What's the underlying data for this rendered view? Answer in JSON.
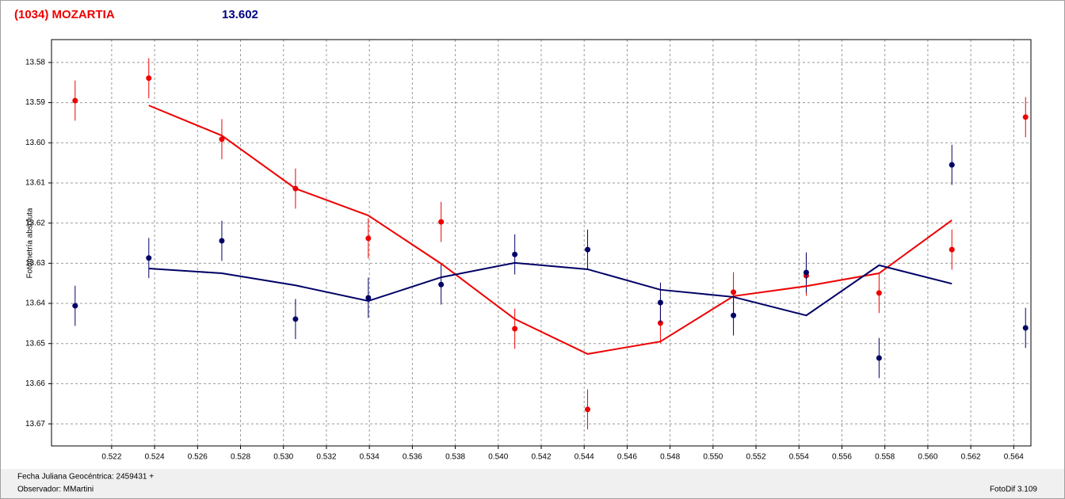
{
  "chart_data": {
    "type": "scatter",
    "title": "(1034) MOZARTIA",
    "subtitle": "13.602",
    "ylabel": "Fotometría absoluta",
    "x": [
      0.5203,
      0.52373,
      0.52713,
      0.53056,
      0.53395,
      0.53734,
      0.54077,
      0.54416,
      0.54755,
      0.55095,
      0.55434,
      0.55773,
      0.56112,
      0.56455
    ],
    "series": [
      {
        "color": "#ee0000",
        "style": "points",
        "values": [
          13.5895,
          13.5839,
          13.5991,
          13.6114,
          13.6238,
          13.6197,
          13.6463,
          13.6664,
          13.6449,
          13.6372,
          13.6331,
          13.6374,
          13.6266,
          13.5936
        ],
        "errors": [
          0.005,
          0.005,
          0.005,
          0.005,
          0.005,
          0.005,
          0.005,
          0.005,
          0.005,
          0.005,
          0.005,
          0.005,
          0.005,
          0.005
        ]
      },
      {
        "color": "#000066",
        "style": "points",
        "values": [
          13.6406,
          13.6287,
          13.6244,
          13.6439,
          13.6386,
          13.6353,
          13.6278,
          13.6266,
          13.6398,
          13.643,
          13.6323,
          13.6536,
          13.6055,
          13.6461
        ],
        "errors": [
          0.005,
          0.005,
          0.005,
          0.005,
          0.005,
          0.005,
          0.005,
          0.005,
          0.005,
          0.005,
          0.005,
          0.005,
          0.005,
          0.005
        ]
      },
      {
        "color": "#ee0000",
        "style": "line",
        "values": [
          null,
          13.5907,
          13.5982,
          13.6114,
          13.6181,
          13.6301,
          13.6439,
          13.6526,
          13.6495,
          13.6382,
          13.6357,
          13.6325,
          13.6193,
          null
        ]
      },
      {
        "color": "#000066",
        "style": "line",
        "values": [
          null,
          13.6313,
          13.6325,
          13.6355,
          13.6394,
          13.6335,
          13.6299,
          13.6315,
          13.6366,
          13.6384,
          13.643,
          13.6305,
          13.6351,
          null
        ]
      }
    ],
    "xlim": [
      0.5192,
      0.5648
    ],
    "xticks": [
      0.522,
      0.524,
      0.526,
      0.528,
      {
        "value": 0.53,
        "label": "0.530"
      },
      0.532,
      0.534,
      0.536,
      0.538,
      {
        "value": 0.54,
        "label": "0.540"
      },
      0.542,
      0.544,
      0.546,
      0.548,
      {
        "value": 0.55,
        "label": "0.550"
      },
      0.552,
      0.554,
      0.556,
      0.558,
      {
        "value": 0.56,
        "label": "0.560"
      },
      0.562,
      0.564
    ],
    "ylim": [
      13.5743,
      13.6755
    ],
    "y_inverted": true,
    "yticks": [
      13.58,
      13.59,
      {
        "value": 13.6,
        "label": "13.60"
      },
      13.61,
      13.62,
      13.63,
      13.64,
      13.65,
      13.66,
      13.67
    ],
    "grid": true
  },
  "footer": {
    "date": "Fecha Juliana Geocéntrica: 2459431 +",
    "observer": "Observador: MMartini",
    "software": "FotoDif 3.109"
  }
}
